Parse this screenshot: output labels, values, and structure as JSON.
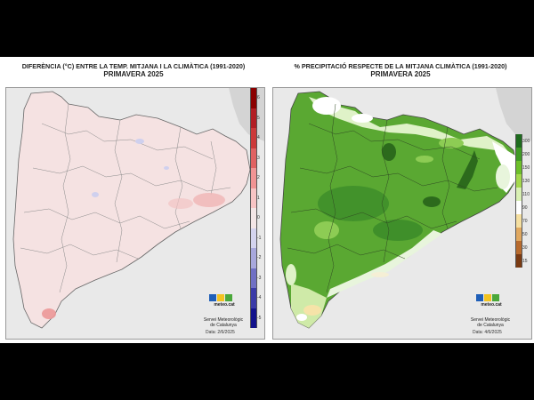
{
  "left_map": {
    "title_line1": "DIFERÈNCIA (°C) ENTRE LA TEMP. MITJANA I LA CLIMÀTICA (1991-2020)",
    "title_line2": "PRIMAVERA 2025",
    "legend": {
      "labels": [
        "6",
        "5",
        "4",
        "3",
        "2",
        "1",
        "0",
        "-1",
        "-2",
        "-3",
        "-4",
        "-5"
      ],
      "colors": [
        "#8b0000",
        "#b21e24",
        "#cc3a3a",
        "#e06262",
        "#f09494",
        "#f7c4c4",
        "#f3e6e6",
        "#d4d4ee",
        "#a8a8dc",
        "#7070c4",
        "#3a3aa8",
        "#12128c"
      ]
    },
    "fill_color": "#f5e2e2",
    "logo_name": "meteo.cat",
    "service_line1": "Servei Meteorològic",
    "service_line2": "de Catalunya",
    "date": "Data: 2/6/2025"
  },
  "right_map": {
    "title_line1": "% PRECIPITACIÓ RESPECTE DE LA MITJANA CLIMÀTICA (1991-2020)",
    "title_line2": "PRIMAVERA 2025",
    "legend": {
      "labels": [
        "300",
        "200",
        "150",
        "130",
        "110",
        "90",
        "70",
        "50",
        "30",
        "15"
      ],
      "colors": [
        "#1e6b1e",
        "#3f9a25",
        "#6dbf2a",
        "#a4d84e",
        "#d9f0b4",
        "#ffffff",
        "#f5dfa0",
        "#e0a860",
        "#b86a2c",
        "#7a3a12"
      ]
    },
    "fill_color": "#5aa832",
    "logo_name": "meteo.cat",
    "service_line1": "Servei Meteorològic",
    "service_line2": "de Catalunya",
    "date": "Data: 4/6/2025"
  },
  "logo_colors": [
    "#1f5fb8",
    "#f2c320",
    "#4aa83a"
  ]
}
